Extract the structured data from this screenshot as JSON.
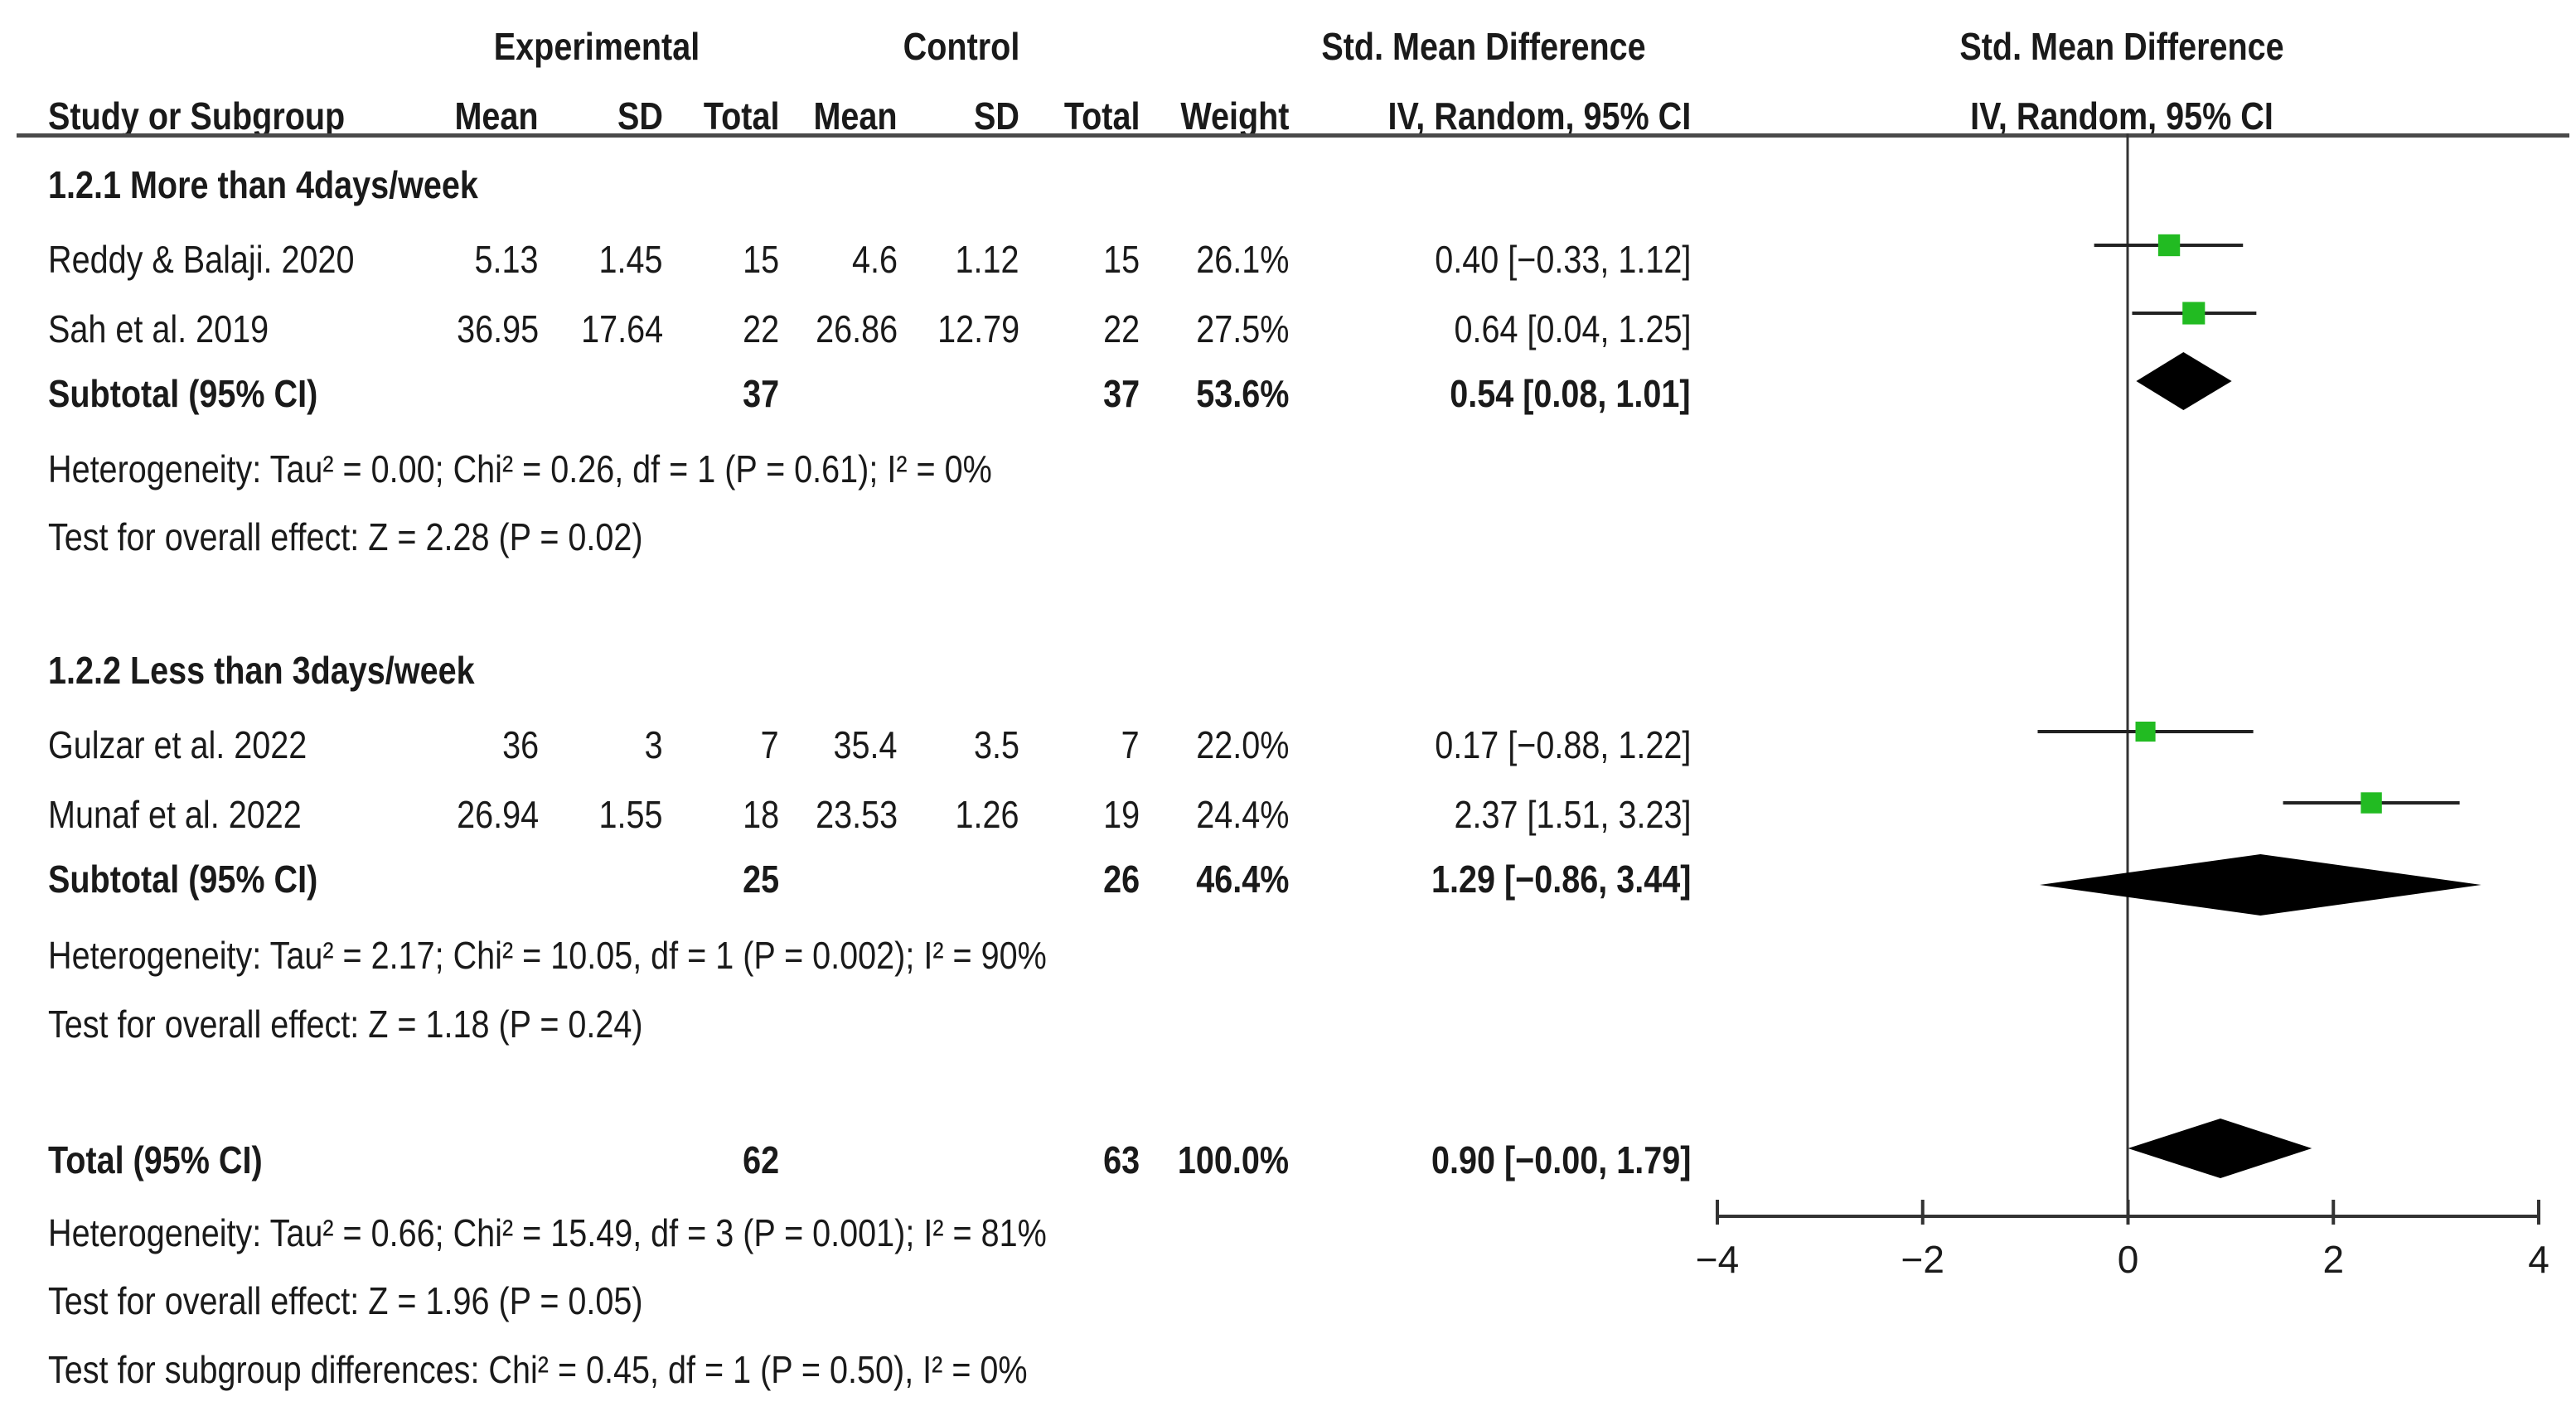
{
  "header": {
    "experimental": "Experimental",
    "control": "Control",
    "smd_table": "Std. Mean Difference",
    "smd_plot": "Std. Mean Difference",
    "cols": {
      "study": "Study or Subgroup",
      "e_mean": "Mean",
      "e_sd": "SD",
      "e_total": "Total",
      "c_mean": "Mean",
      "c_sd": "SD",
      "c_total": "Total",
      "weight": "Weight",
      "ci": "IV, Random, 95% CI",
      "plot_method": "IV, Random, 95% CI"
    }
  },
  "groups": [
    {
      "title": "1.2.1 More than 4days/week",
      "studies": [
        {
          "study": "Reddy & Balaji. 2020",
          "e_mean": "5.13",
          "e_sd": "1.45",
          "e_total": "15",
          "c_mean": "4.6",
          "c_sd": "1.12",
          "c_total": "15",
          "weight": "26.1%",
          "ci": "0.40 [−0.33, 1.12]"
        },
        {
          "study": "Sah et al. 2019",
          "e_mean": "36.95",
          "e_sd": "17.64",
          "e_total": "22",
          "c_mean": "26.86",
          "c_sd": "12.79",
          "c_total": "22",
          "weight": "27.5%",
          "ci": "0.64 [0.04, 1.25]"
        }
      ],
      "subtotal": {
        "label": "Subtotal (95% CI)",
        "e_total": "37",
        "c_total": "37",
        "weight": "53.6%",
        "ci": "0.54 [0.08, 1.01]"
      },
      "heterogeneity": "Heterogeneity: Tau² = 0.00; Chi² = 0.26, df = 1 (P = 0.61); I² = 0%",
      "overall": "Test for overall effect: Z = 2.28 (P = 0.02)"
    },
    {
      "title": "1.2.2 Less than 3days/week",
      "studies": [
        {
          "study": "Gulzar et al. 2022",
          "e_mean": "36",
          "e_sd": "3",
          "e_total": "7",
          "c_mean": "35.4",
          "c_sd": "3.5",
          "c_total": "7",
          "weight": "22.0%",
          "ci": "0.17 [−0.88, 1.22]"
        },
        {
          "study": "Munaf et al. 2022",
          "e_mean": "26.94",
          "e_sd": "1.55",
          "e_total": "18",
          "c_mean": "23.53",
          "c_sd": "1.26",
          "c_total": "19",
          "weight": "24.4%",
          "ci": "2.37 [1.51, 3.23]"
        }
      ],
      "subtotal": {
        "label": "Subtotal (95% CI)",
        "e_total": "25",
        "c_total": "26",
        "weight": "46.4%",
        "ci": "1.29 [−0.86, 3.44]"
      },
      "heterogeneity": "Heterogeneity: Tau² = 2.17; Chi² = 10.05, df = 1 (P = 0.002); I² = 90%",
      "overall": "Test for overall effect: Z = 1.18 (P = 0.24)"
    }
  ],
  "total": {
    "label": "Total (95% CI)",
    "e_total": "62",
    "c_total": "63",
    "weight": "100.0%",
    "ci": "0.90 [−0.00, 1.79]",
    "heterogeneity": "Heterogeneity: Tau² = 0.66; Chi² = 15.49, df = 3 (P = 0.001); I² = 81%",
    "overall": "Test for overall effect: Z = 1.96 (P = 0.05)",
    "subgroup": "Test for subgroup differences: Chi² = 0.45, df = 1 (P = 0.50), I² = 0%"
  },
  "chart_data": {
    "type": "forest",
    "xlim": [
      -4,
      4
    ],
    "xticks": [
      -4,
      -2,
      0,
      2,
      4
    ],
    "xtick_labels": [
      "−4",
      "−2",
      "0",
      "2",
      "4"
    ],
    "studies": [
      {
        "name": "Reddy & Balaji. 2020",
        "est": 0.4,
        "lo": -0.33,
        "hi": 1.12,
        "weight": 26.1
      },
      {
        "name": "Sah et al. 2019",
        "est": 0.64,
        "lo": 0.04,
        "hi": 1.25,
        "weight": 27.5
      },
      {
        "name": "Gulzar et al. 2022",
        "est": 0.17,
        "lo": -0.88,
        "hi": 1.22,
        "weight": 22.0
      },
      {
        "name": "Munaf et al. 2022",
        "est": 2.37,
        "lo": 1.51,
        "hi": 3.23,
        "weight": 24.4
      }
    ],
    "summaries": [
      {
        "name": "Subtotal 1.2.1",
        "est": 0.54,
        "lo": 0.08,
        "hi": 1.01
      },
      {
        "name": "Subtotal 1.2.2",
        "est": 1.29,
        "lo": -0.86,
        "hi": 3.44
      },
      {
        "name": "Total",
        "est": 0.9,
        "lo": -0.0,
        "hi": 1.79
      }
    ],
    "colors": {
      "study_marker": "#22bb22",
      "line": "#222222",
      "diamond": "#000000"
    }
  }
}
